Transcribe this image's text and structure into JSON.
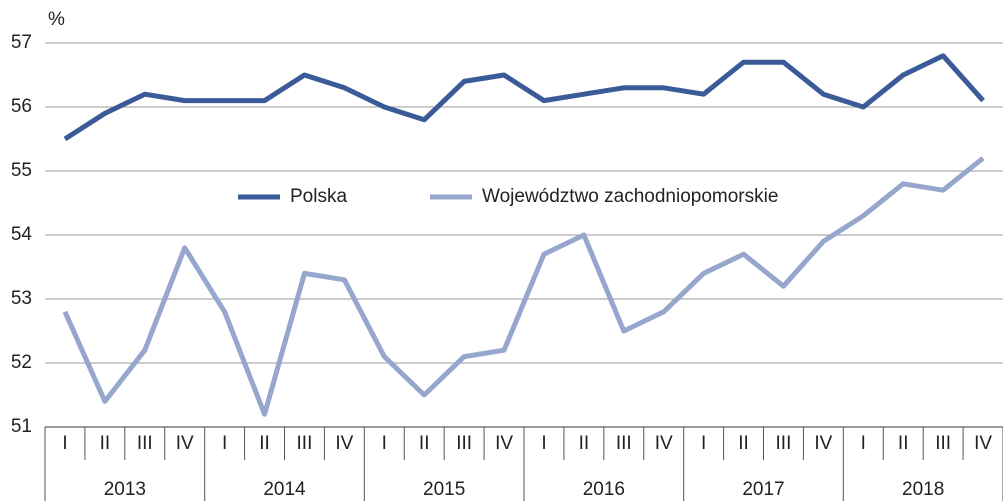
{
  "chart_data": {
    "type": "line",
    "y_unit": "%",
    "categories": [
      "I",
      "II",
      "III",
      "IV",
      "I",
      "II",
      "III",
      "IV",
      "I",
      "II",
      "III",
      "IV",
      "I",
      "II",
      "III",
      "IV",
      "I",
      "II",
      "III",
      "IV",
      "I",
      "II",
      "III",
      "IV"
    ],
    "years": [
      "2013",
      "2014",
      "2015",
      "2016",
      "2017",
      "2018"
    ],
    "series": [
      {
        "name": "Polska",
        "color": "#3a5a98",
        "values": [
          55.5,
          55.9,
          56.2,
          56.1,
          56.1,
          56.1,
          56.5,
          56.3,
          56.0,
          55.8,
          56.4,
          56.5,
          56.1,
          56.2,
          56.3,
          56.3,
          56.2,
          56.7,
          56.7,
          56.2,
          56.0,
          56.5,
          56.8,
          56.1
        ]
      },
      {
        "name": "Województwo zachodniopomorskie",
        "color": "#96a6cc",
        "values": [
          52.8,
          51.4,
          52.2,
          53.8,
          52.8,
          51.2,
          53.4,
          53.3,
          52.1,
          51.5,
          52.1,
          52.2,
          53.7,
          54.0,
          52.5,
          52.8,
          53.4,
          53.7,
          53.2,
          53.9,
          54.3,
          54.8,
          54.7,
          55.2
        ]
      }
    ],
    "ylim": [
      51,
      57
    ],
    "yticks": [
      51,
      52,
      53,
      54,
      55,
      56,
      57
    ],
    "grid": true
  }
}
